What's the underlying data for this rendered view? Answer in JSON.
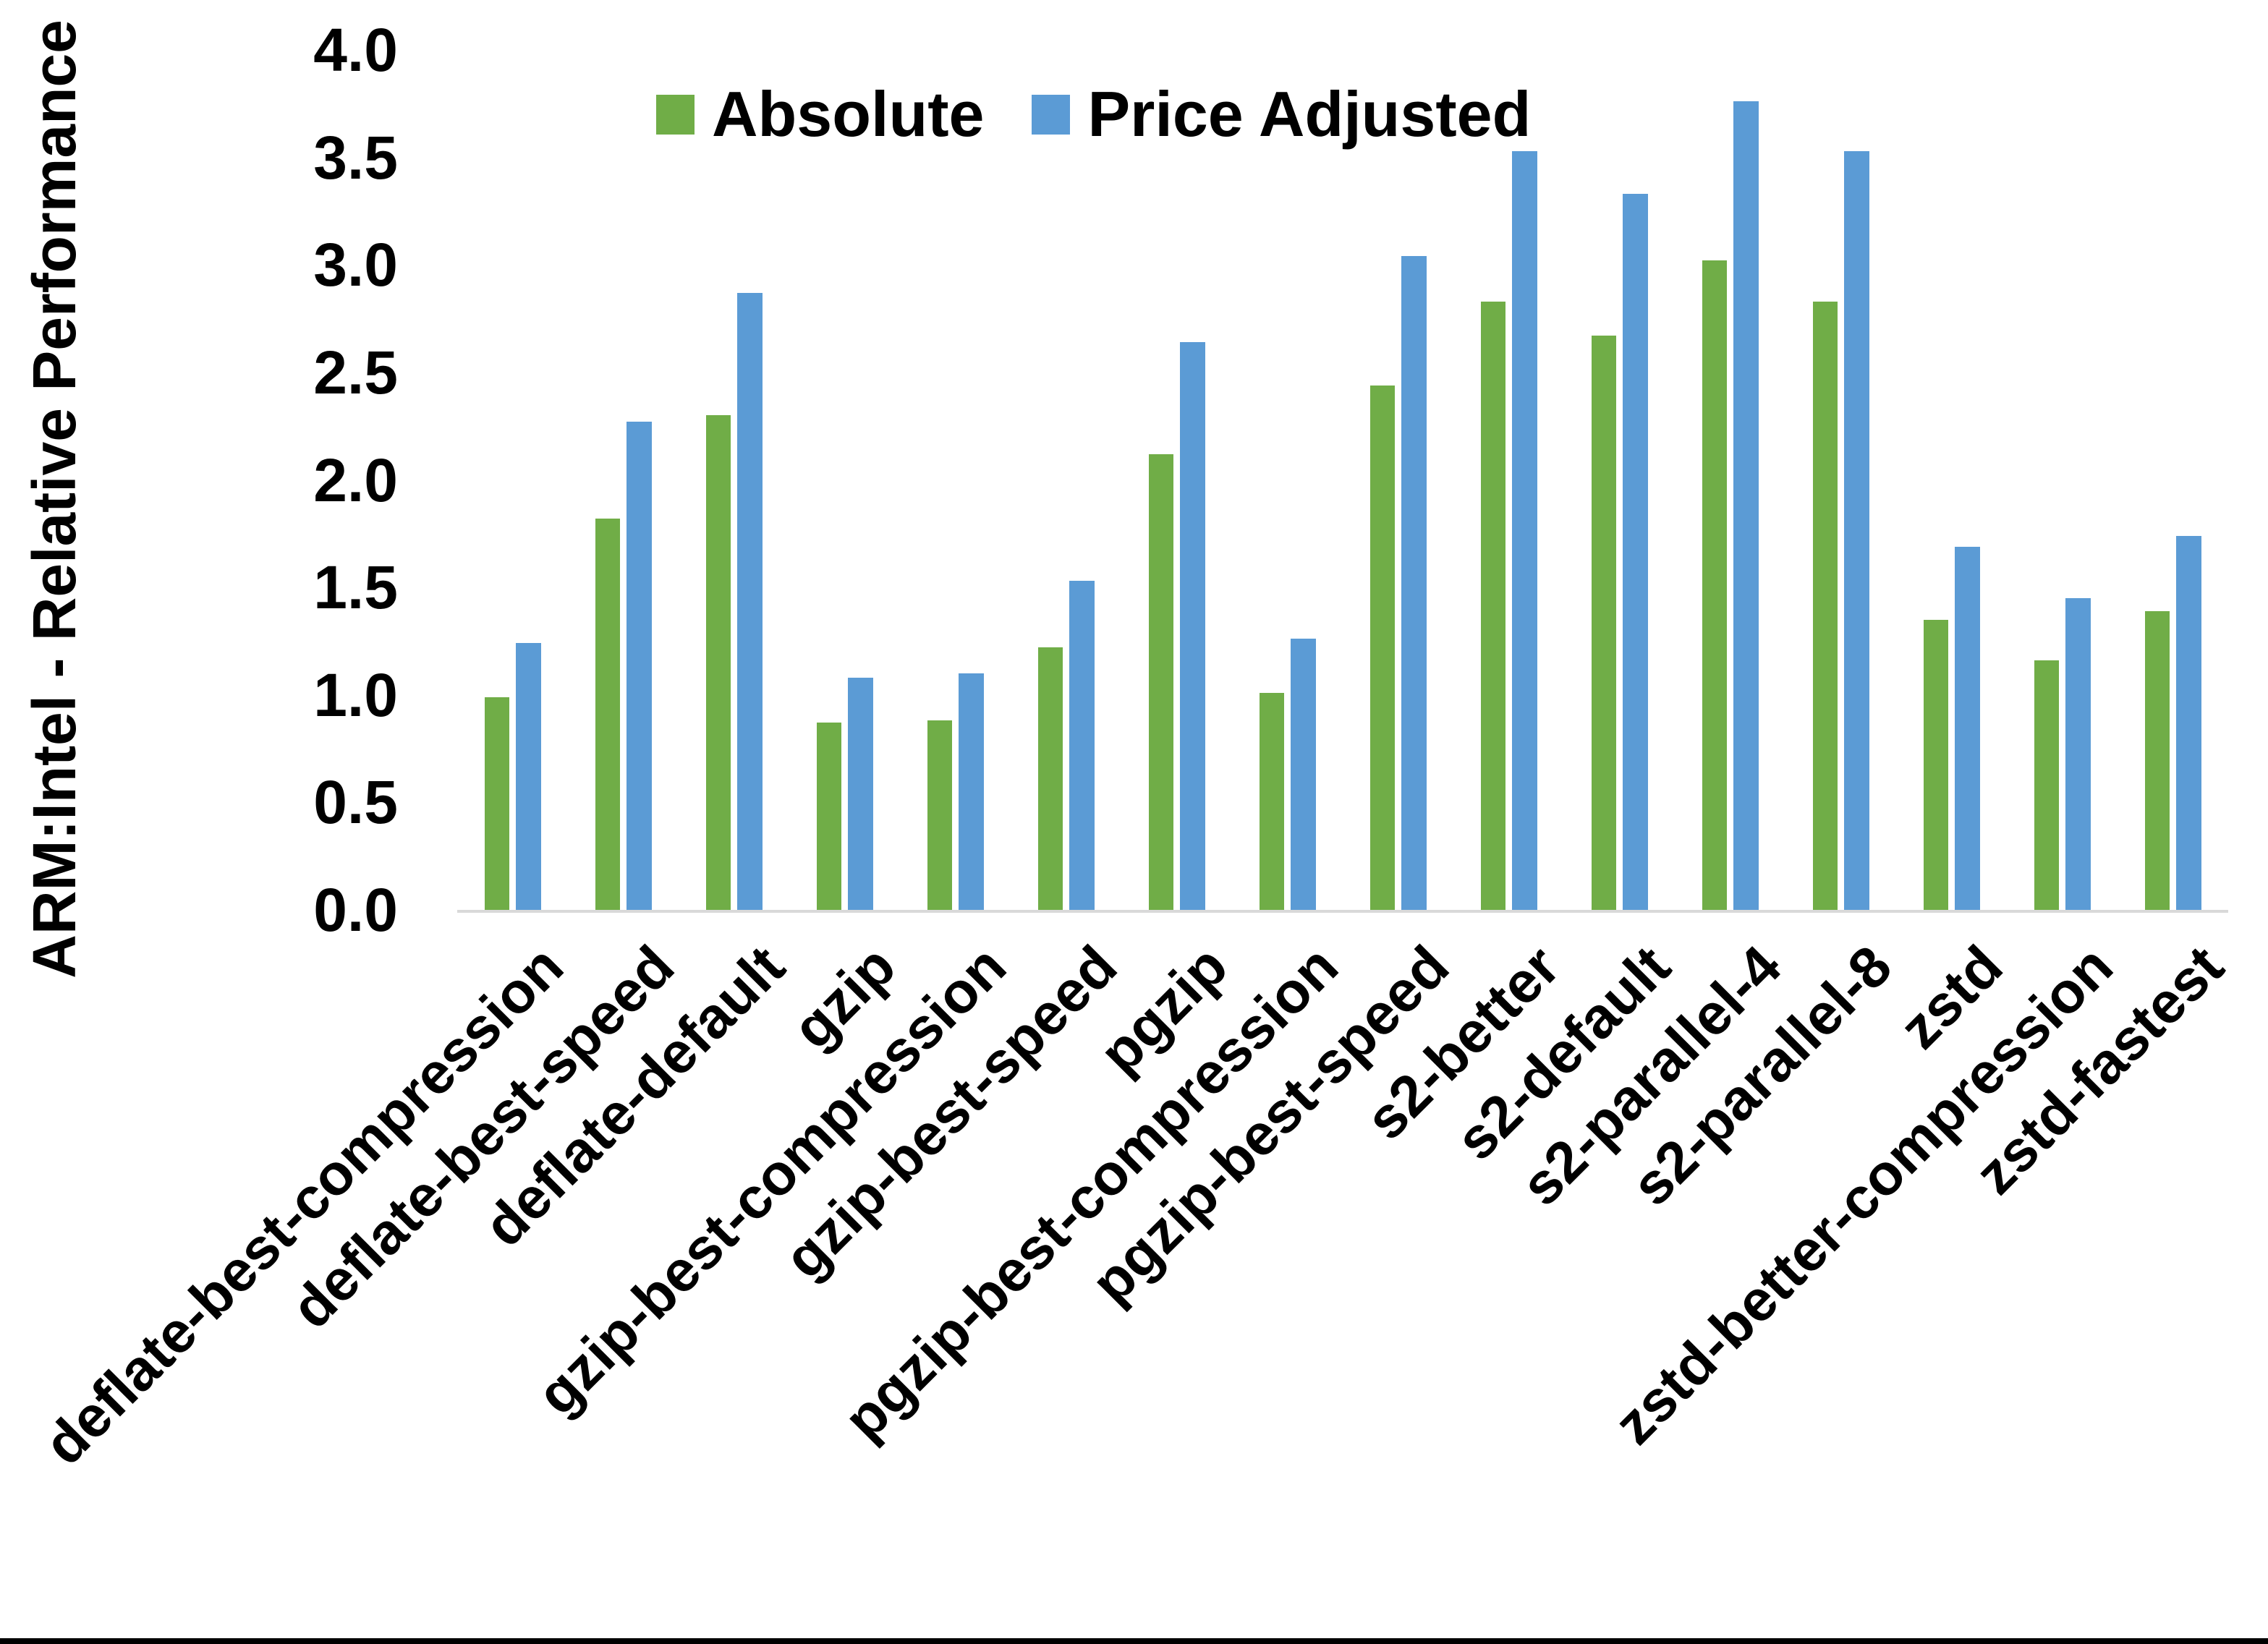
{
  "chart_data": {
    "type": "bar",
    "title": "",
    "ylabel": "ARM:Intel - Relative Performance",
    "xlabel": "",
    "ylim": [
      0,
      4
    ],
    "ytick_step": 0.5,
    "ytick_labels": [
      "0.0",
      "0.5",
      "1.0",
      "1.5",
      "2.0",
      "2.5",
      "3.0",
      "3.5",
      "4.0"
    ],
    "grid": false,
    "legend_position": "top-center",
    "categories": [
      "deflate-best-compression",
      "deflate-best-speed",
      "deflate-default",
      "gzip",
      "gzip-best-compression",
      "gzip-best-speed",
      "pgzip",
      "pgzip-best-compression",
      "pgzip-best-speed",
      "s2-better",
      "s2-default",
      "s2-parallel-4",
      "s2-parallel-8",
      "zstd",
      "zstd-better-compression",
      "zstd-fastest"
    ],
    "series": [
      {
        "name": "Absolute",
        "color": "#70AD47",
        "values": [
          0.99,
          1.82,
          2.3,
          0.87,
          0.88,
          1.22,
          2.12,
          1.01,
          2.44,
          2.83,
          2.67,
          3.02,
          2.83,
          1.35,
          1.16,
          1.39
        ]
      },
      {
        "name": "Price Adjusted",
        "color": "#5B9BD5",
        "values": [
          1.24,
          2.27,
          2.87,
          1.08,
          1.1,
          1.53,
          2.64,
          1.26,
          3.04,
          3.53,
          3.33,
          3.76,
          3.53,
          1.69,
          1.45,
          1.74
        ]
      }
    ],
    "axis_line_color": "#D9D9D9",
    "text_color": "#000000",
    "background_color": "#FFFFFF",
    "bottom_edge_color": "#000000"
  }
}
